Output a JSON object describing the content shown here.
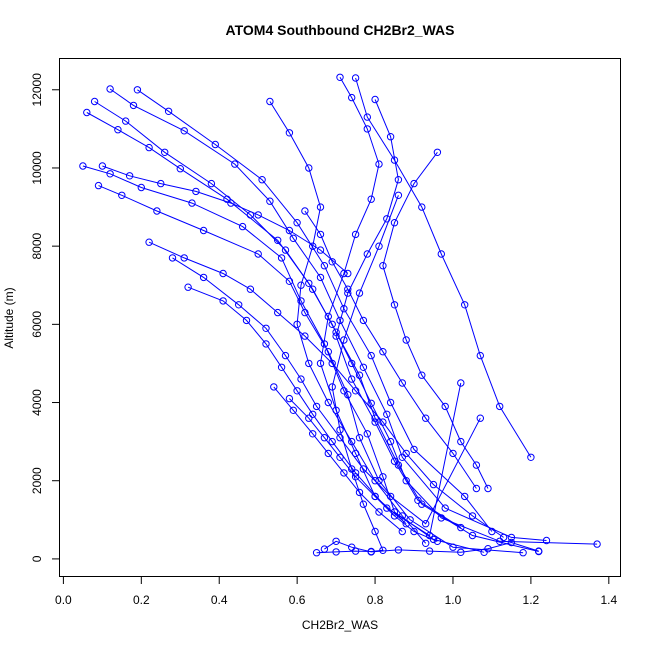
{
  "chart_data": {
    "type": "scatter",
    "title": "ATOM4 Southbound CH2Br2_WAS",
    "xlabel": "CH2Br2_WAS",
    "ylabel": "Altitude (m)",
    "xlim": [
      -0.01,
      1.43
    ],
    "ylim": [
      -450,
      12800
    ],
    "x_ticks": [
      0.0,
      0.2,
      0.4,
      0.6,
      0.8,
      1.0,
      1.2,
      1.4
    ],
    "x_tick_labels": [
      "0.0",
      "0.2",
      "0.4",
      "0.6",
      "0.8",
      "1.0",
      "1.2",
      "1.4"
    ],
    "y_ticks": [
      0,
      2000,
      4000,
      6000,
      8000,
      10000,
      12000
    ],
    "y_tick_labels": [
      "0",
      "2000",
      "4000",
      "6000",
      "8000",
      "10000",
      "12000"
    ],
    "grid": false,
    "color": "#0000ff",
    "series": [
      {
        "x": [
          0.06,
          0.14,
          0.22,
          0.3,
          0.42,
          0.55,
          0.63,
          0.69,
          0.74,
          0.79,
          0.84,
          0.88,
          0.97,
          1.12,
          1.37
        ],
        "y": [
          11420,
          10980,
          10520,
          9980,
          9200,
          8150,
          7050,
          6000,
          5000,
          3980,
          3000,
          2000,
          1050,
          450,
          380
        ]
      },
      {
        "x": [
          0.08,
          0.16,
          0.26,
          0.38,
          0.48,
          0.57,
          0.64,
          0.7,
          0.76,
          0.8,
          0.86,
          0.92,
          1.05,
          1.22
        ],
        "y": [
          11700,
          11200,
          10400,
          9600,
          8800,
          7900,
          6900,
          5800,
          4700,
          3600,
          2400,
          1400,
          600,
          190
        ]
      },
      {
        "x": [
          0.05,
          0.12,
          0.2,
          0.33,
          0.46,
          0.56,
          0.61,
          0.67,
          0.72,
          0.78,
          0.82,
          0.85,
          0.95,
          1.08
        ],
        "y": [
          10050,
          9850,
          9500,
          9100,
          8500,
          7700,
          6600,
          5500,
          4300,
          3200,
          2100,
          1200,
          500,
          170
        ]
      },
      {
        "x": [
          0.12,
          0.18,
          0.31,
          0.44,
          0.53,
          0.59,
          0.66,
          0.71,
          0.77,
          0.83,
          0.87,
          0.98,
          1.15,
          1.24
        ],
        "y": [
          12020,
          11600,
          10950,
          10100,
          9150,
          8200,
          7200,
          6100,
          4900,
          3700,
          2600,
          1300,
          550,
          470
        ]
      },
      {
        "x": [
          0.09,
          0.15,
          0.24,
          0.36,
          0.5,
          0.58,
          0.62,
          0.68,
          0.73,
          0.76,
          0.81,
          0.89,
          1.0,
          1.18
        ],
        "y": [
          9550,
          9300,
          8900,
          8400,
          7800,
          7100,
          6300,
          5300,
          4200,
          3100,
          2000,
          1000,
          300,
          160
        ]
      },
      {
        "x": [
          0.19,
          0.27,
          0.39,
          0.51,
          0.6,
          0.67,
          0.72,
          0.79,
          0.84,
          0.9,
          1.03,
          1.1
        ],
        "y": [
          12000,
          11450,
          10600,
          9700,
          8600,
          7500,
          6400,
          5200,
          4000,
          2800,
          1600,
          700
        ]
      },
      {
        "x": [
          0.65,
          0.7,
          0.75,
          0.79,
          0.82,
          0.8,
          0.77,
          0.74,
          0.71,
          0.69,
          0.72,
          0.76,
          0.81,
          0.86
        ],
        "y": [
          160,
          180,
          200,
          190,
          220,
          700,
          1400,
          2300,
          3300,
          4400,
          5600,
          6800,
          8000,
          9300
        ]
      },
      {
        "x": [
          0.71,
          0.74,
          0.78,
          0.81,
          0.79,
          0.75,
          0.72,
          0.68,
          0.66,
          0.7,
          0.75,
          0.8,
          0.88
        ],
        "y": [
          12320,
          11800,
          11000,
          10100,
          9200,
          8300,
          7300,
          6200,
          5000,
          3800,
          2700,
          1600,
          900
        ]
      },
      {
        "x": [
          0.53,
          0.58,
          0.63,
          0.66,
          0.64,
          0.61,
          0.6,
          0.63,
          0.68,
          0.74,
          0.8,
          0.87,
          0.93
        ],
        "y": [
          11700,
          10900,
          10000,
          9000,
          8000,
          7000,
          6000,
          5000,
          4000,
          3000,
          2000,
          1100,
          400
        ]
      },
      {
        "x": [
          0.8,
          0.84,
          0.86,
          0.83,
          0.78,
          0.73,
          0.7,
          0.74,
          0.8,
          0.85,
          0.91,
          1.02
        ],
        "y": [
          11750,
          10800,
          9700,
          8700,
          7800,
          6800,
          5700,
          4600,
          3500,
          2500,
          1500,
          800
        ]
      },
      {
        "x": [
          0.22,
          0.31,
          0.41,
          0.48,
          0.55,
          0.62,
          0.69,
          0.75,
          0.82,
          0.88,
          0.95,
          1.05,
          1.13
        ],
        "y": [
          8100,
          7700,
          7300,
          6900,
          6300,
          5700,
          5000,
          4300,
          3500,
          2700,
          1900,
          1100,
          550
        ]
      },
      {
        "x": [
          0.28,
          0.36,
          0.45,
          0.52,
          0.57,
          0.61,
          0.65,
          0.71,
          0.77,
          0.84,
          0.93,
          1.07
        ],
        "y": [
          7700,
          7200,
          6500,
          5900,
          5200,
          4600,
          3900,
          3100,
          2300,
          1600,
          900,
          3600
        ]
      },
      {
        "x": [
          0.32,
          0.41,
          0.47,
          0.52,
          0.56,
          0.6,
          0.64,
          0.69,
          0.75,
          0.83,
          0.94,
          1.02
        ],
        "y": [
          6950,
          6600,
          6100,
          5500,
          4900,
          4300,
          3700,
          3000,
          2200,
          1300,
          600,
          4500
        ]
      },
      {
        "x": [
          0.96,
          0.9,
          0.85,
          0.82,
          0.85,
          0.88,
          0.92,
          0.98,
          1.02,
          1.06,
          1.09
        ],
        "y": [
          10400,
          9600,
          8600,
          7500,
          6500,
          5600,
          4700,
          3900,
          3000,
          2400,
          1800
        ]
      },
      {
        "x": [
          0.75,
          0.78,
          0.85,
          0.92,
          0.97,
          1.03,
          1.07,
          1.12,
          1.2
        ],
        "y": [
          12300,
          11300,
          10200,
          9000,
          7800,
          6500,
          5200,
          3900,
          2600
        ]
      },
      {
        "x": [
          0.67,
          0.7,
          0.74,
          0.79,
          0.86,
          0.94,
          1.02,
          1.09,
          1.15,
          1.22
        ],
        "y": [
          250,
          450,
          300,
          180,
          230,
          200,
          170,
          260,
          420,
          200
        ]
      },
      {
        "x": [
          0.62,
          0.66,
          0.69,
          0.73,
          0.77,
          0.82,
          0.87,
          0.93,
          1.0,
          1.06
        ],
        "y": [
          8900,
          8300,
          7600,
          6900,
          6100,
          5300,
          4500,
          3600,
          2700,
          1800
        ]
      },
      {
        "x": [
          0.58,
          0.63,
          0.67,
          0.71,
          0.75,
          0.8,
          0.85,
          0.9,
          0.96
        ],
        "y": [
          4100,
          3600,
          3100,
          2600,
          2100,
          1600,
          1100,
          700,
          450
        ]
      },
      {
        "x": [
          0.54,
          0.59,
          0.64,
          0.68,
          0.72,
          0.76,
          0.81,
          0.87
        ],
        "y": [
          4400,
          3800,
          3200,
          2700,
          2200,
          1700,
          1200,
          700
        ]
      },
      {
        "x": [
          0.1,
          0.17,
          0.25,
          0.34,
          0.43,
          0.5,
          0.58,
          0.66,
          0.73
        ],
        "y": [
          10050,
          9800,
          9600,
          9400,
          9100,
          8800,
          8400,
          7900,
          7300
        ]
      }
    ]
  }
}
